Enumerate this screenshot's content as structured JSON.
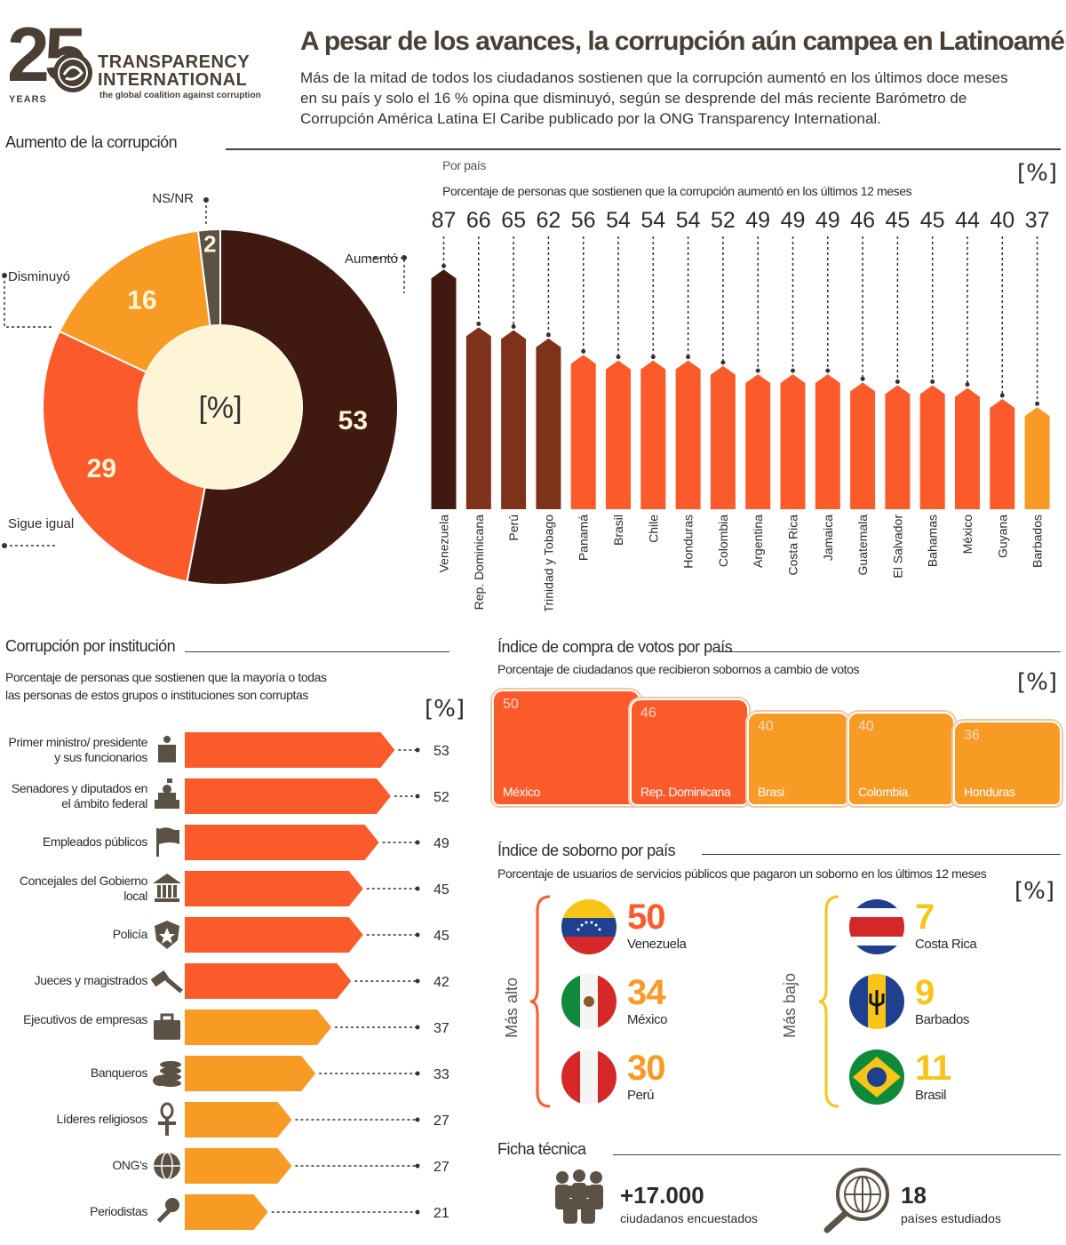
{
  "header": {
    "logo_years_number": "25",
    "logo_years_word": "YEARS",
    "logo_name": "TRANSPARENCY INTERNATIONAL",
    "logo_tagline": "the global coalition against corruption",
    "title": "A pesar de los avances, la corrupción aún campea en Latinoamérica",
    "subtitle": "Más de la mitad de todos los ciudadanos sostienen que la corrupción aumentó en los últimos doce meses en su país y solo el 16 % opina que disminuyó, según se desprende del más reciente Barómetro de Corrupción América Latina El Caribe publicado por la ONG Transparency International."
  },
  "colors": {
    "dark_brown": "#401a10",
    "rust": "#7d3219",
    "orange": "#fb5b2b",
    "amber": "#f79b25",
    "cream": "#fdf5d6",
    "gray": "#5b5145",
    "yellow": "#f7c418"
  },
  "unit_label": "[%]",
  "chart_data": [
    {
      "type": "pie",
      "title": "Aumento de la corrupción",
      "center_label": "[%]",
      "categories": [
        "Aumentó",
        "Sigue igual",
        "Disminuyó",
        "NS/NR"
      ],
      "values": [
        53,
        29,
        16,
        2
      ]
    },
    {
      "type": "bar",
      "title": "Por país",
      "subtitle": "Porcentaje de personas que sostienen que la corrupción aumentó en los últimos 12 meses",
      "unit": "[%]",
      "categories": [
        "Venezuela",
        "Rep. Dominicana",
        "Perú",
        "Trinidad y Tobago",
        "Panamá",
        "Brasil",
        "Chile",
        "Honduras",
        "Colombia",
        "Argentina",
        "Costa Rica",
        "Jamaica",
        "Guatemala",
        "El Salvador",
        "Bahamas",
        "México",
        "Guyana",
        "Barbados"
      ],
      "values": [
        87,
        66,
        65,
        62,
        56,
        54,
        54,
        54,
        52,
        49,
        49,
        49,
        46,
        45,
        45,
        44,
        40,
        37
      ],
      "ylim": [
        0,
        100
      ]
    },
    {
      "type": "bar",
      "title": "Corrupción por institución",
      "subtitle": "Porcentaje de personas que sostienen que la mayoría o todas las personas de estos grupos o instituciones son corruptas",
      "unit": "[%]",
      "categories": [
        "Primer ministro/ presidente y sus funcionarios",
        "Senadores y diputados en el ámbito federal",
        "Empleados públicos",
        "Concejales del Gobierno local",
        "Policía",
        "Jueces y magistrados",
        "Ejecutivos de empresas",
        "Banqueros",
        "Líderes religiosos",
        "ONG's",
        "Periodistas"
      ],
      "values": [
        53,
        52,
        49,
        45,
        45,
        42,
        37,
        33,
        27,
        27,
        21
      ]
    },
    {
      "type": "bar",
      "title": "Índice de compra de votos por país",
      "subtitle": "Porcentaje de ciudadanos que recibieron sobornos a cambio de votos",
      "unit": "[%]",
      "categories": [
        "México",
        "Rep. Dominicana",
        "Brasi",
        "Colombia",
        "Honduras"
      ],
      "values": [
        50,
        46,
        40,
        40,
        36
      ]
    },
    {
      "type": "table",
      "title": "Índice de soborno por país",
      "subtitle": "Porcentaje de usuarios de servicios públicos que pagaron un soborno en los últimos 12 meses",
      "unit": "[%]",
      "groups": [
        {
          "name": "Más alto",
          "categories": [
            "Venezuela",
            "México",
            "Perú"
          ],
          "values": [
            50,
            34,
            30
          ]
        },
        {
          "name": "Más bajo",
          "categories": [
            "Costa Rica",
            "Barbados",
            "Brasil"
          ],
          "values": [
            7,
            9,
            11
          ]
        }
      ]
    }
  ],
  "ficha": {
    "title": "Ficha técnica",
    "respondents_value": "+17.000",
    "respondents_label": "ciudadanos encuestados",
    "countries_value": "18",
    "countries_label": "países estudiados"
  },
  "icons": {
    "institutions": [
      "podium-icon",
      "capitol-icon",
      "flag-icon",
      "government-building-icon",
      "police-badge-icon",
      "gavel-icon",
      "briefcase-icon",
      "coins-icon",
      "ankh-icon",
      "globe-icon",
      "microphone-icon"
    ],
    "ficha": [
      "people-icon",
      "globe-magnifier-icon"
    ]
  }
}
